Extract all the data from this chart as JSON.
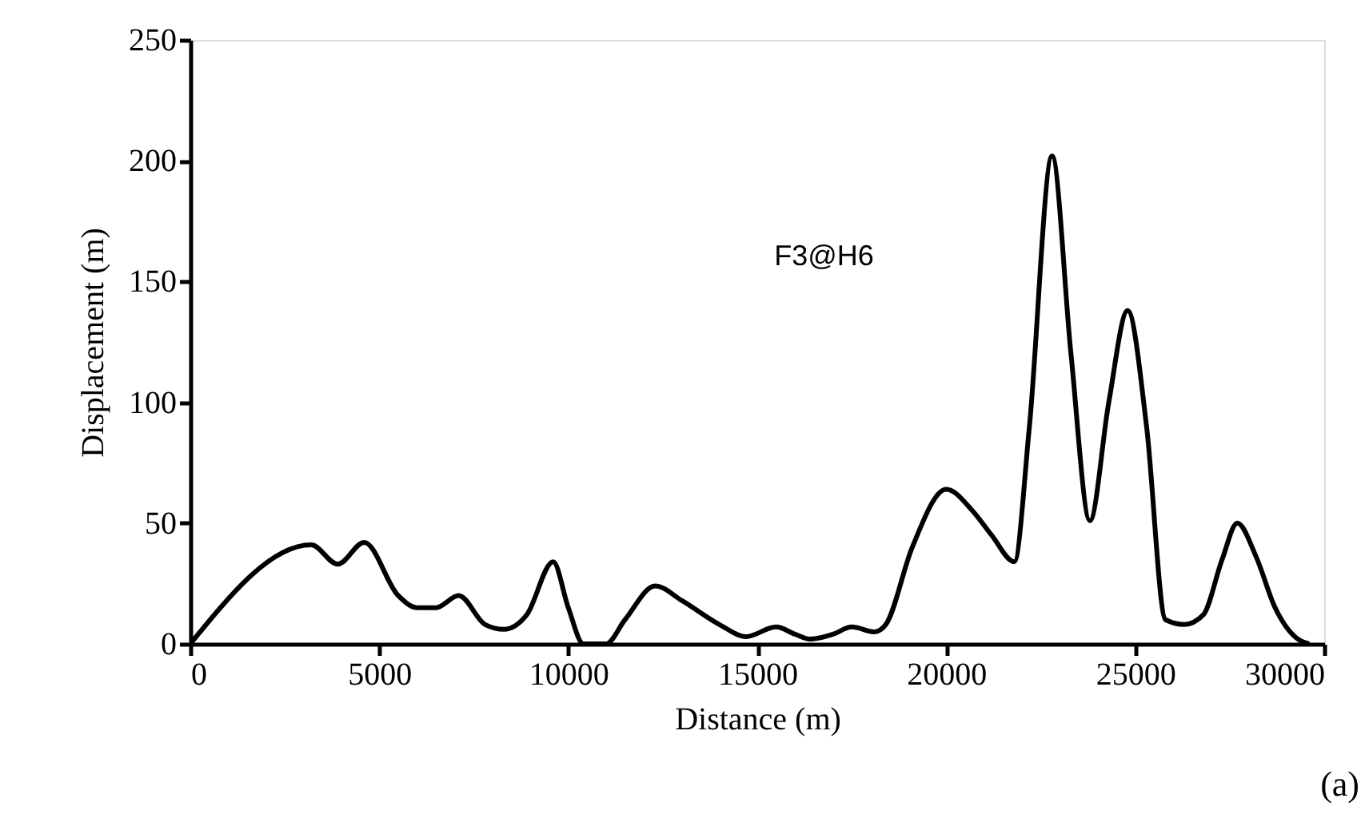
{
  "chart_data": {
    "type": "line",
    "xlabel": "Distance (m)",
    "ylabel": "Displacement (m)",
    "annotations": [
      "F3@H6",
      "(a)"
    ],
    "xlim": [
      0,
      30000
    ],
    "xticks": [
      0,
      5000,
      10000,
      15000,
      20000,
      25000,
      30000
    ],
    "ylim": [
      0,
      250
    ],
    "yticks": [
      0,
      50,
      100,
      150,
      200,
      250
    ],
    "grid": false,
    "marker": "none",
    "line_style": "solid",
    "x": [
      0,
      3200,
      3900,
      4600,
      5500,
      6000,
      6500,
      7100,
      7800,
      8300,
      8900,
      9600,
      10000,
      10400,
      11000,
      11500,
      12300,
      13000,
      14000,
      14700,
      15500,
      16000,
      16400,
      17000,
      17500,
      18100,
      18400,
      19100,
      20000,
      20700,
      21200,
      21800,
      22200,
      22800,
      23300,
      23800,
      24300,
      24800,
      25300,
      25800,
      26300,
      26800,
      27300,
      27700,
      28200,
      28700,
      29300,
      29600
    ],
    "series": [
      {
        "color": "#000000",
        "values": [
          0,
          41,
          33,
          42,
          20,
          15,
          15,
          20,
          8,
          6,
          12,
          34,
          15,
          0,
          0,
          10,
          24,
          18,
          8,
          3,
          7,
          4,
          2,
          4,
          7,
          5,
          8,
          40,
          64,
          55,
          45,
          34,
          90,
          202,
          120,
          51,
          100,
          138,
          90,
          10,
          8,
          12,
          35,
          50,
          36,
          15,
          2,
          0
        ]
      }
    ]
  }
}
